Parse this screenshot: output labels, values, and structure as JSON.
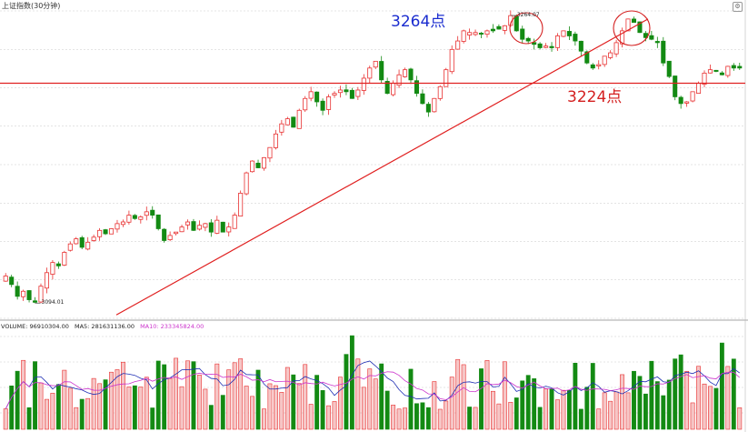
{
  "header": {
    "title": "上证指数(30分钟)"
  },
  "annotations": {
    "high_point": "3264点",
    "support_point": "3224点"
  },
  "volume_panel": {
    "volume_label": "VOLUME: 96910304.00",
    "ma5_label": "MA5: 281631136.00",
    "ma10_label": "MA10: 233345824.00"
  },
  "colors": {
    "up": "#e83030",
    "down": "#138a13",
    "trend_line": "#e02020",
    "ma5": "#1f2fb4",
    "ma10": "#cc33cc",
    "blue_annotation": "#1a2ccf",
    "red_annotation": "#d42020"
  },
  "chart_data": {
    "type": "candlestick",
    "title": "上证指数(30分钟)",
    "price_range": [
      3085,
      3270
    ],
    "high_label": "3264.07",
    "low_label": "3094.01",
    "highlighted_high": 3264.07,
    "highlighted_low": 3094.01,
    "support_level": 3224,
    "trendline_from": 3087,
    "trendline_to": 3262,
    "close_path": [
      3110,
      3105,
      3098,
      3101,
      3096,
      3094.5,
      3104,
      3112,
      3118,
      3116,
      3124,
      3129,
      3132,
      3127,
      3130,
      3133,
      3137,
      3135,
      3138,
      3141,
      3142,
      3146,
      3144,
      3145,
      3148,
      3146,
      3138,
      3131,
      3134,
      3136,
      3139,
      3142,
      3137,
      3140,
      3141,
      3136,
      3143,
      3136,
      3139,
      3146,
      3159,
      3171,
      3178,
      3174,
      3180,
      3186,
      3194,
      3200,
      3203,
      3198,
      3208,
      3215,
      3219,
      3213,
      3208,
      3216,
      3218,
      3220,
      3219,
      3215,
      3220,
      3227,
      3233,
      3237,
      3226,
      3218,
      3224,
      3229,
      3232,
      3226,
      3218,
      3212,
      3207,
      3215,
      3222,
      3232,
      3244,
      3249,
      3255,
      3254,
      3254,
      3253,
      3255,
      3255,
      3256,
      3258,
      3264,
      3255,
      3250,
      3249,
      3247,
      3245,
      3246,
      3245,
      3252,
      3255,
      3252,
      3249,
      3243,
      3236,
      3233,
      3235,
      3240,
      3242,
      3248,
      3255,
      3262,
      3260,
      3254,
      3251,
      3250,
      3248,
      3236,
      3228,
      3216,
      3212,
      3213,
      3219,
      3224,
      3230,
      3232,
      3231,
      3229,
      3234,
      3233,
      3233
    ],
    "volume_range": [
      0,
      450000000
    ],
    "volume_seed": 7,
    "ma5_value": 281631136,
    "ma10_value": 233345824
  }
}
